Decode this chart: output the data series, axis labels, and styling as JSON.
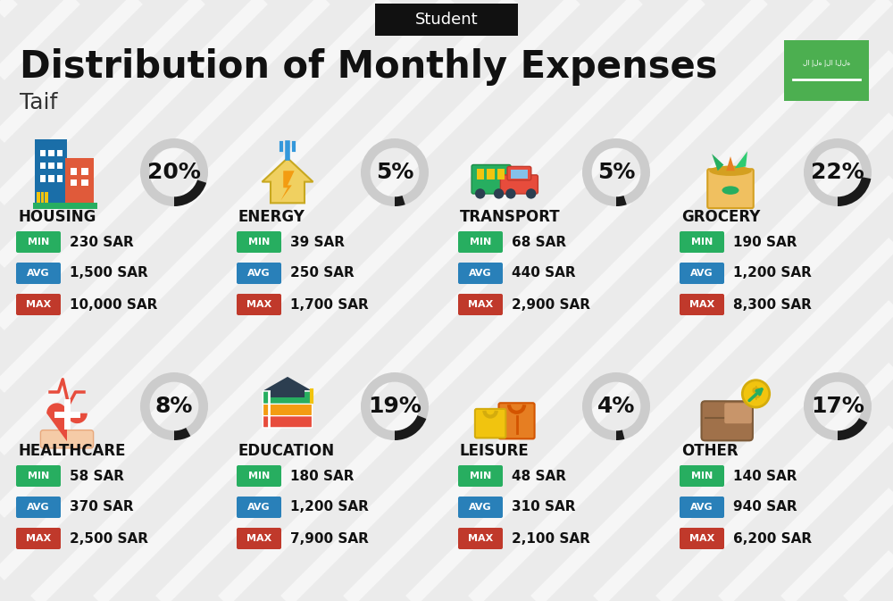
{
  "title": "Distribution of Monthly Expenses",
  "subtitle": "Student",
  "city": "Taif",
  "bg_color": "#ebebeb",
  "stripe_color": "#ffffff",
  "categories": [
    {
      "name": "HOUSING",
      "pct": 20,
      "min_val": "230 SAR",
      "avg_val": "1,500 SAR",
      "max_val": "10,000 SAR",
      "row": 0,
      "col": 0
    },
    {
      "name": "ENERGY",
      "pct": 5,
      "min_val": "39 SAR",
      "avg_val": "250 SAR",
      "max_val": "1,700 SAR",
      "row": 0,
      "col": 1
    },
    {
      "name": "TRANSPORT",
      "pct": 5,
      "min_val": "68 SAR",
      "avg_val": "440 SAR",
      "max_val": "2,900 SAR",
      "row": 0,
      "col": 2
    },
    {
      "name": "GROCERY",
      "pct": 22,
      "min_val": "190 SAR",
      "avg_val": "1,200 SAR",
      "max_val": "8,300 SAR",
      "row": 0,
      "col": 3
    },
    {
      "name": "HEALTHCARE",
      "pct": 8,
      "min_val": "58 SAR",
      "avg_val": "370 SAR",
      "max_val": "2,500 SAR",
      "row": 1,
      "col": 0
    },
    {
      "name": "EDUCATION",
      "pct": 19,
      "min_val": "180 SAR",
      "avg_val": "1,200 SAR",
      "max_val": "7,900 SAR",
      "row": 1,
      "col": 1
    },
    {
      "name": "LEISURE",
      "pct": 4,
      "min_val": "48 SAR",
      "avg_val": "310 SAR",
      "max_val": "2,100 SAR",
      "row": 1,
      "col": 2
    },
    {
      "name": "OTHER",
      "pct": 17,
      "min_val": "140 SAR",
      "avg_val": "940 SAR",
      "max_val": "6,200 SAR",
      "row": 1,
      "col": 3
    }
  ],
  "min_color": "#27ae60",
  "avg_color": "#2980b9",
  "max_color": "#c0392b",
  "circle_bg": "#cccccc",
  "circle_fg": "#1a1a1a",
  "flag_color": "#4caf50",
  "header_bg": "#111111",
  "title_color": "#111111",
  "city_color": "#333333",
  "cat_color": "#111111"
}
